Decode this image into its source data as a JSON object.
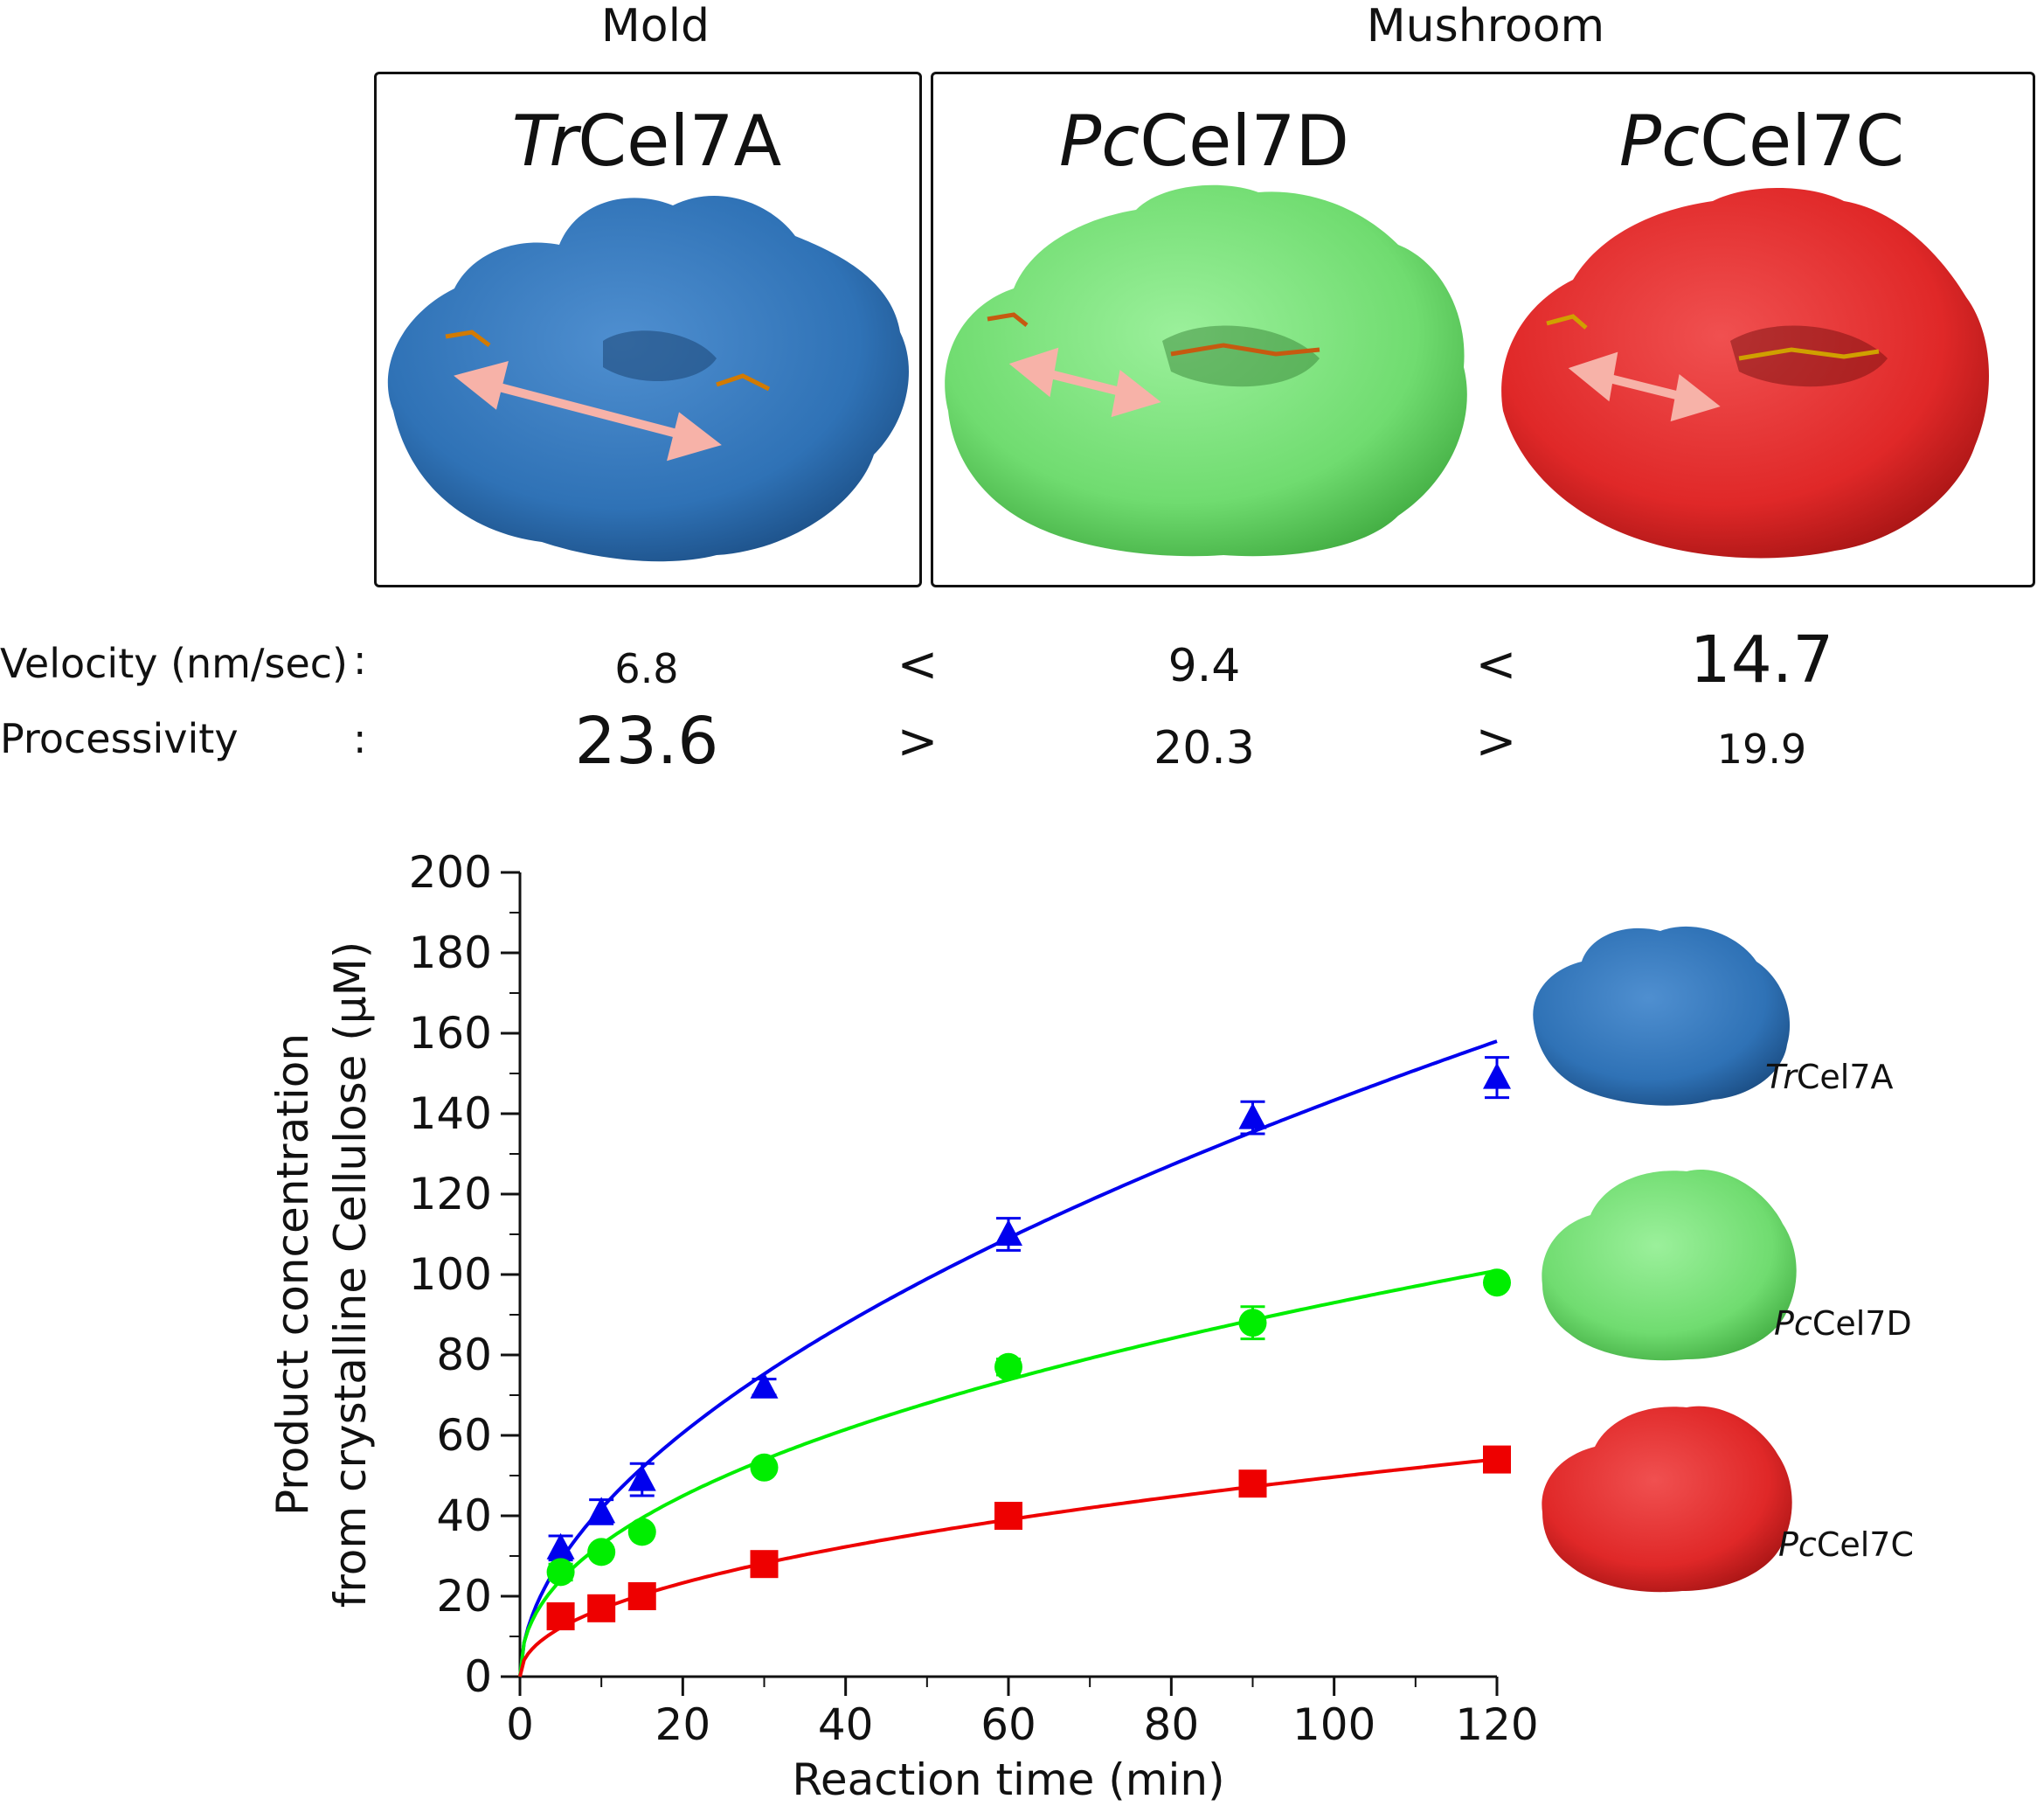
{
  "header": {
    "group_mold": "Mold",
    "group_mushroom": "Mushroom"
  },
  "enzymes": [
    {
      "prefix": "Tr",
      "suffix": "Cel7A",
      "color": "#2f72b6",
      "velocity": "6.8",
      "processivity": "23.6"
    },
    {
      "prefix": "Pc",
      "suffix": "Cel7D",
      "color": "#6fe06f",
      "velocity": "9.4",
      "processivity": "20.3"
    },
    {
      "prefix": "Pc",
      "suffix": "Cel7C",
      "color": "#e22a2a",
      "velocity": "14.7",
      "processivity": "19.9"
    }
  ],
  "metrics": {
    "velocity_label": "Velocity (nm/sec)",
    "processivity_label": "Processivity",
    "colon": ":",
    "velocity_cmp": [
      "<",
      "<"
    ],
    "processivity_cmp": [
      ">",
      ">"
    ]
  },
  "chart_data": {
    "type": "scatter",
    "xlabel": "Reaction time (min)",
    "ylabel_line1": "Product concentration",
    "ylabel_line2": "from crystalline Cellulose (μM)",
    "xlim": [
      0,
      120
    ],
    "ylim": [
      0,
      200
    ],
    "xticks": [
      0,
      20,
      40,
      60,
      80,
      100,
      120
    ],
    "yticks": [
      0,
      20,
      40,
      60,
      80,
      100,
      120,
      140,
      160,
      180,
      200
    ],
    "x": [
      5,
      10,
      15,
      30,
      60,
      90,
      120
    ],
    "series": [
      {
        "name": "TrCel7A",
        "prefix": "Tr",
        "suffix": "Cel7A",
        "marker": "triangle",
        "color": "#0000ee",
        "values": [
          32,
          41,
          49,
          72,
          110,
          139,
          149
        ],
        "errors": [
          3,
          3,
          4,
          2,
          4,
          4,
          5
        ],
        "fit": {
          "a": 12.2,
          "b": 0.535
        }
      },
      {
        "name": "PcCel7D",
        "prefix": "Pc",
        "suffix": "Cel7D",
        "marker": "circle",
        "color": "#00ee00",
        "values": [
          26,
          31,
          36,
          52,
          77,
          88,
          98
        ],
        "errors": [
          2,
          1,
          1,
          1,
          2,
          4,
          1
        ],
        "fit": {
          "a": 11.6,
          "b": 0.452
        }
      },
      {
        "name": "PcCel7C",
        "prefix": "Pc",
        "suffix": "Cel7C",
        "marker": "square",
        "color": "#ee0000",
        "values": [
          15,
          17,
          20,
          28,
          40,
          48,
          54
        ],
        "errors": [
          1,
          1,
          1,
          1,
          1,
          1,
          1
        ],
        "fit": {
          "a": 5.7,
          "b": 0.47
        }
      }
    ]
  }
}
